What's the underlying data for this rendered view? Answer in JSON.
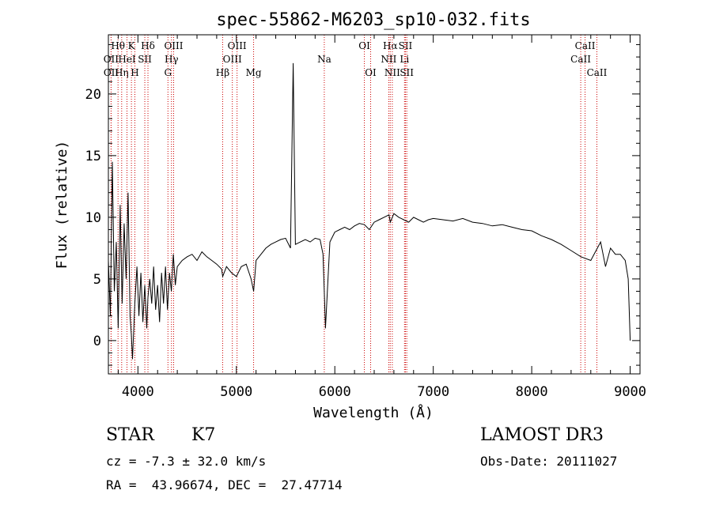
{
  "chart_data": {
    "type": "line",
    "title": "spec-55862-M6203_sp10-032.fits",
    "xlabel": "Wavelength (Å)",
    "ylabel": "Flux (relative)",
    "xlim": [
      3700,
      9100
    ],
    "ylim": [
      -2.7,
      24.8
    ],
    "xticks": [
      4000,
      5000,
      6000,
      7000,
      8000,
      9000
    ],
    "yticks": [
      0,
      5,
      10,
      15,
      20
    ],
    "line_color": "#000000",
    "marker_color": "#cc0000",
    "series": [
      {
        "name": "flux",
        "x": [
          3700,
          3720,
          3740,
          3760,
          3780,
          3800,
          3820,
          3840,
          3860,
          3880,
          3900,
          3920,
          3933,
          3945,
          3968,
          3990,
          4010,
          4030,
          4050,
          4070,
          4090,
          4102,
          4120,
          4140,
          4160,
          4180,
          4200,
          4220,
          4240,
          4260,
          4280,
          4300,
          4320,
          4340,
          4360,
          4380,
          4400,
          4450,
          4500,
          4550,
          4600,
          4650,
          4700,
          4750,
          4800,
          4850,
          4861,
          4900,
          4950,
          5000,
          5050,
          5100,
          5150,
          5175,
          5200,
          5250,
          5300,
          5350,
          5400,
          5450,
          5500,
          5550,
          5577,
          5600,
          5650,
          5700,
          5750,
          5800,
          5850,
          5880,
          5893,
          5905,
          5950,
          6000,
          6050,
          6100,
          6150,
          6200,
          6250,
          6300,
          6350,
          6400,
          6450,
          6500,
          6550,
          6563,
          6600,
          6650,
          6700,
          6750,
          6800,
          6850,
          6900,
          6950,
          7000,
          7100,
          7200,
          7300,
          7400,
          7500,
          7600,
          7700,
          7800,
          7900,
          8000,
          8100,
          8200,
          8300,
          8400,
          8500,
          8600,
          8700,
          8750,
          8800,
          8850,
          8900,
          8950,
          8980,
          9000
        ],
        "y": [
          6.5,
          2.0,
          14.5,
          4.0,
          8.0,
          1.0,
          11.0,
          3.0,
          9.5,
          5.0,
          12.0,
          2.0,
          0.5,
          -1.5,
          3.0,
          6.0,
          2.0,
          5.5,
          1.5,
          4.5,
          1.0,
          3.5,
          5.0,
          3.0,
          6.0,
          2.5,
          4.5,
          1.5,
          5.5,
          3.0,
          6.0,
          2.5,
          5.5,
          4.0,
          7.0,
          4.5,
          6.0,
          6.5,
          6.8,
          7.0,
          6.5,
          7.2,
          6.8,
          6.5,
          6.2,
          5.8,
          5.2,
          6.0,
          5.5,
          5.2,
          6.0,
          6.2,
          5.0,
          4.0,
          6.5,
          7.0,
          7.5,
          7.8,
          8.0,
          8.2,
          8.3,
          7.5,
          22.5,
          7.8,
          8.0,
          8.2,
          8.0,
          8.3,
          8.2,
          7.0,
          4.0,
          1.0,
          8.0,
          8.8,
          9.0,
          9.2,
          9.0,
          9.3,
          9.5,
          9.4,
          9.0,
          9.6,
          9.8,
          10.0,
          10.2,
          9.6,
          10.3,
          10.0,
          9.8,
          9.6,
          10.0,
          9.8,
          9.6,
          9.8,
          9.9,
          9.8,
          9.7,
          9.9,
          9.6,
          9.5,
          9.3,
          9.4,
          9.2,
          9.0,
          8.9,
          8.5,
          8.2,
          7.8,
          7.3,
          6.8,
          6.5,
          8.0,
          6.0,
          7.5,
          7.0,
          7.0,
          6.5,
          5.0,
          0.0
        ]
      }
    ],
    "line_markers": [
      {
        "label": "Hθ",
        "x": 3798,
        "row": 0
      },
      {
        "label": "OII",
        "x": 3727,
        "row": 1
      },
      {
        "label": "OII",
        "x": 3728,
        "row": 2
      },
      {
        "label": "Hη",
        "x": 3835,
        "row": 2
      },
      {
        "label": "K",
        "x": 3934,
        "row": 0
      },
      {
        "label": "HeI",
        "x": 3889,
        "row": 1
      },
      {
        "label": "H",
        "x": 3969,
        "row": 2
      },
      {
        "label": "SII",
        "x": 4070,
        "row": 1
      },
      {
        "label": "Hδ",
        "x": 4102,
        "row": 0
      },
      {
        "label": "OIII",
        "x": 4363,
        "row": 0
      },
      {
        "label": "Hγ",
        "x": 4341,
        "row": 1
      },
      {
        "label": "G",
        "x": 4305,
        "row": 2
      },
      {
        "label": "Hβ",
        "x": 4861,
        "row": 2
      },
      {
        "label": "OIII",
        "x": 5007,
        "row": 0
      },
      {
        "label": "OIII",
        "x": 4959,
        "row": 1
      },
      {
        "label": "Mg",
        "x": 5175,
        "row": 2
      },
      {
        "label": "Na",
        "x": 5893,
        "row": 1
      },
      {
        "label": "OI",
        "x": 6300,
        "row": 0
      },
      {
        "label": "OI",
        "x": 6364,
        "row": 2
      },
      {
        "label": "Hα",
        "x": 6563,
        "row": 0
      },
      {
        "label": "SII",
        "x": 6717,
        "row": 0
      },
      {
        "label": "NII",
        "x": 6548,
        "row": 1
      },
      {
        "label": "Li",
        "x": 6708,
        "row": 1
      },
      {
        "label": "NII",
        "x": 6584,
        "row": 2
      },
      {
        "label": "SII",
        "x": 6731,
        "row": 2
      },
      {
        "label": "CaII",
        "x": 8542,
        "row": 0
      },
      {
        "label": "CaII",
        "x": 8498,
        "row": 1
      },
      {
        "label": "CaII",
        "x": 8662,
        "row": 2
      }
    ]
  },
  "info": {
    "object_class": "STAR",
    "subclass": "K7",
    "survey": "LAMOST DR3",
    "cz_line": "cz = -7.3 ± 32.0 km/s",
    "obs_date_line": "Obs-Date: 20111027",
    "coords_line": "RA =  43.96674, DEC =  27.47714"
  }
}
